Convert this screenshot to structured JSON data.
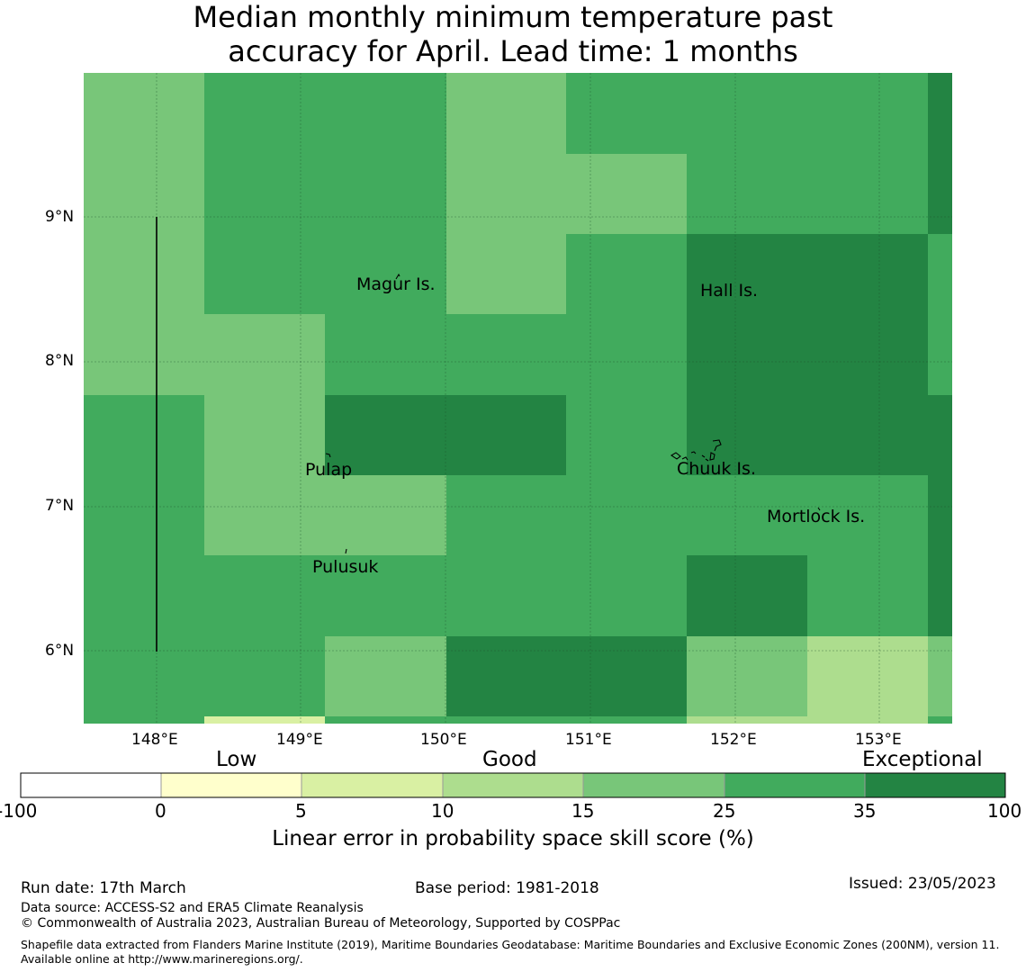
{
  "title": {
    "line1": "Median monthly minimum temperature past",
    "line2": "accuracy for April. Lead time: 1 months"
  },
  "map": {
    "lat_labels": [
      "9°N",
      "8°N",
      "7°N",
      "6°N"
    ],
    "lon_labels": [
      "148°E",
      "149°E",
      "150°E",
      "151°E",
      "152°E",
      "153°E"
    ],
    "places": [
      {
        "name": "Magur Is."
      },
      {
        "name": "Hall Is."
      },
      {
        "name": "Pulap"
      },
      {
        "name": "Chuuk Is."
      },
      {
        "name": "Mortlock Is."
      },
      {
        "name": "Pulusuk"
      }
    ],
    "colors": {
      "c_5_10": "#d9f0a3",
      "c_10_15": "#addd8e",
      "c_15_25": "#78c679",
      "c_25_35": "#41ab5d",
      "c_35_100": "#238443"
    }
  },
  "colorbar": {
    "categories": [
      "Low",
      "Good",
      "Exceptional"
    ],
    "ticks": [
      "-100",
      "0",
      "5",
      "10",
      "15",
      "25",
      "35",
      "100"
    ],
    "colors": [
      "#ffffff",
      "#ffffcc",
      "#d9f0a3",
      "#addd8e",
      "#78c679",
      "#41ab5d",
      "#238443"
    ],
    "title": "Linear error in probability space skill score (%)"
  },
  "footer": {
    "run_date": "Run date: 17th March",
    "base_period": "Base period: 1981-2018",
    "issued": "Issued: 23/05/2023",
    "data_source": "Data source: ACCESS-S2 and ERA5 Climate Reanalysis",
    "copyright": "© Commonwealth of Australia 2023, Australian Bureau of Meteorology, Supported by COSPPac",
    "shapefile": "Shapefile data extracted from Flanders Marine Institute (2019), Maritime Boundaries Geodatabase: Maritime Boundaries and Exclusive Economic Zones (200NM), version 11. Available online at http://www.marineregions.org/."
  }
}
